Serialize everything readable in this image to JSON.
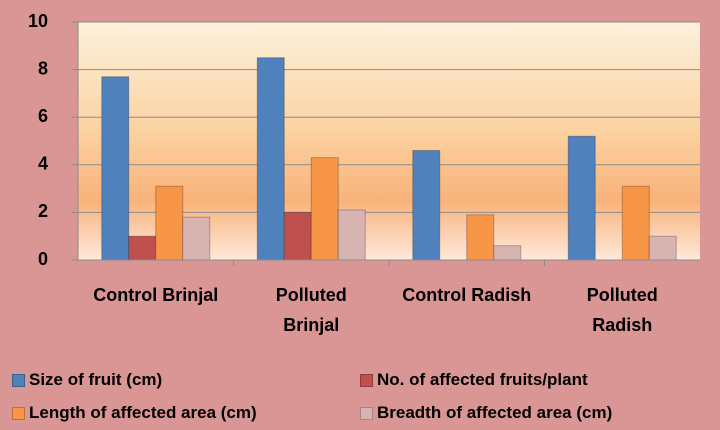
{
  "chart_data": {
    "type": "bar",
    "categories": [
      "Control Brinjal",
      "Polluted Brinjal",
      "Control Radish",
      "Polluted Radish"
    ],
    "series": [
      {
        "name": "Size of fruit (cm)",
        "color": "#4f81bd",
        "values": [
          7.7,
          8.5,
          4.6,
          5.2
        ]
      },
      {
        "name": "No. of affected fruits/plant",
        "color": "#c0504d",
        "values": [
          1.0,
          2.0,
          0,
          0
        ]
      },
      {
        "name": "Length of affected area (cm)",
        "color": "#f79646",
        "values": [
          3.1,
          4.3,
          1.9,
          3.1
        ]
      },
      {
        "name": "Breadth of affected area (cm)",
        "color": "#d7b3b2",
        "values": [
          1.8,
          2.1,
          0.6,
          1.0
        ]
      }
    ],
    "ylim": [
      0,
      10
    ],
    "yticks": [
      0,
      2,
      4,
      6,
      8,
      10
    ],
    "grid": true,
    "legend": "bottom"
  }
}
